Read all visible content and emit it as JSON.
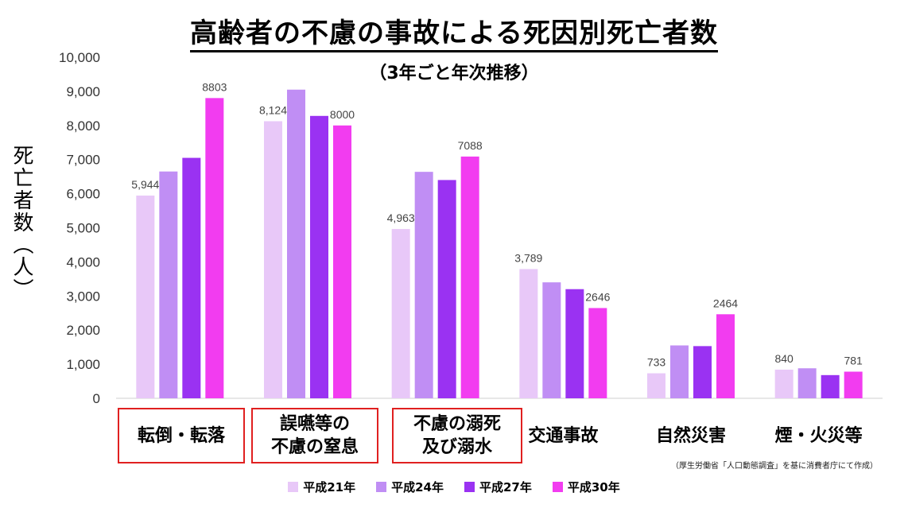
{
  "chart_data": {
    "type": "bar",
    "title": "高齢者の不慮の事故による死因別死亡者数",
    "subtitle": "（3年ごと年次推移）",
    "ylabel": "死亡者数（人）",
    "ylim": [
      0,
      10000
    ],
    "yticks": [
      "0",
      "1,000",
      "2,000",
      "3,000",
      "4,000",
      "5,000",
      "6,000",
      "7,000",
      "8,000",
      "9,000",
      "10,000"
    ],
    "categories": [
      "転倒・転落",
      "誤嚥等の不慮の窒息",
      "不慮の溺死及び溺水",
      "交通事故",
      "自然災害",
      "煙・火災等"
    ],
    "category_lines": [
      [
        "転倒・転落"
      ],
      [
        "誤嚥等の",
        "不慮の窒息"
      ],
      [
        "不慮の溺死",
        "及び溺水"
      ],
      [
        "交通事故"
      ],
      [
        "自然災害"
      ],
      [
        "煙・火災等"
      ]
    ],
    "boxed_categories": [
      true,
      true,
      true,
      false,
      false,
      false
    ],
    "series": [
      {
        "name": "平成21年",
        "color": "#e8c8f8",
        "values": [
          5944,
          8124,
          4963,
          3789,
          733,
          840
        ],
        "labels": [
          "5,944",
          "8,124",
          "4,963",
          "3,789",
          "733",
          "840"
        ]
      },
      {
        "name": "平成24年",
        "color": "#c08ef4",
        "values": [
          6650,
          9050,
          6640,
          3400,
          1550,
          880
        ],
        "labels": [
          "",
          "",
          "",
          "",
          "",
          ""
        ]
      },
      {
        "name": "平成27年",
        "color": "#9a32f2",
        "values": [
          7050,
          8280,
          6400,
          3200,
          1530,
          680
        ],
        "labels": [
          "",
          "",
          "",
          "",
          "",
          ""
        ]
      },
      {
        "name": "平成30年",
        "color": "#f23cf0",
        "values": [
          8803,
          8000,
          7088,
          2646,
          2464,
          781
        ],
        "labels": [
          "8803",
          "8000",
          "7088",
          "2646",
          "2464",
          "781"
        ]
      }
    ],
    "grid": false,
    "legend": "bottom"
  },
  "source": "（厚生労働省「人口動態調査」を基に消費者庁にて作成）"
}
